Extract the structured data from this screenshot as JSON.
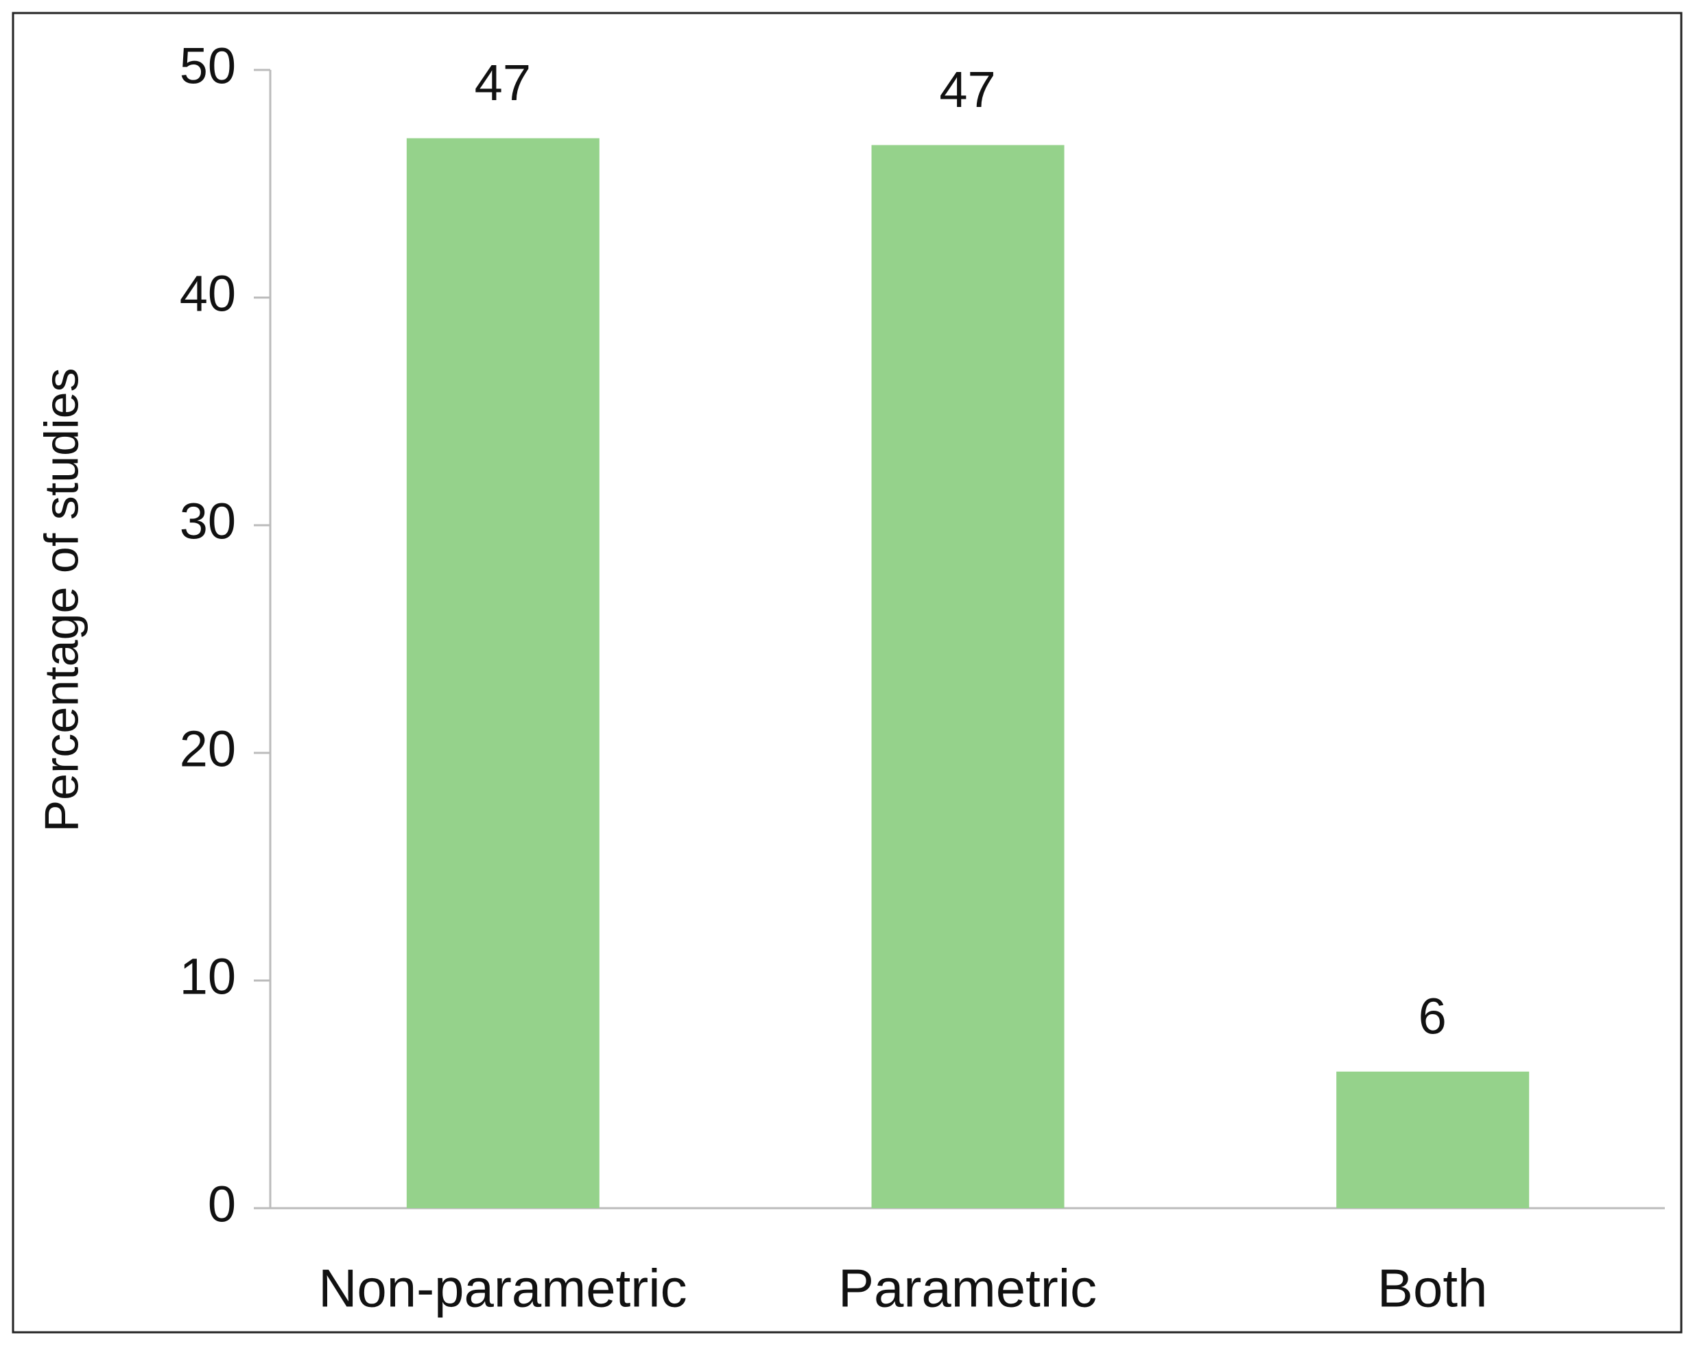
{
  "chart_data": {
    "type": "bar",
    "y_label": "Percentage of studies",
    "categories": [
      "Non-parametric",
      "Parametric",
      "Both"
    ],
    "values": [
      47,
      46.7,
      6
    ],
    "value_labels": [
      "47",
      "47",
      "6"
    ],
    "color": "#95d28b",
    "ylim": [
      0,
      50
    ],
    "yticks": [
      0,
      10,
      20,
      30,
      40,
      50
    ],
    "grid": false
  }
}
